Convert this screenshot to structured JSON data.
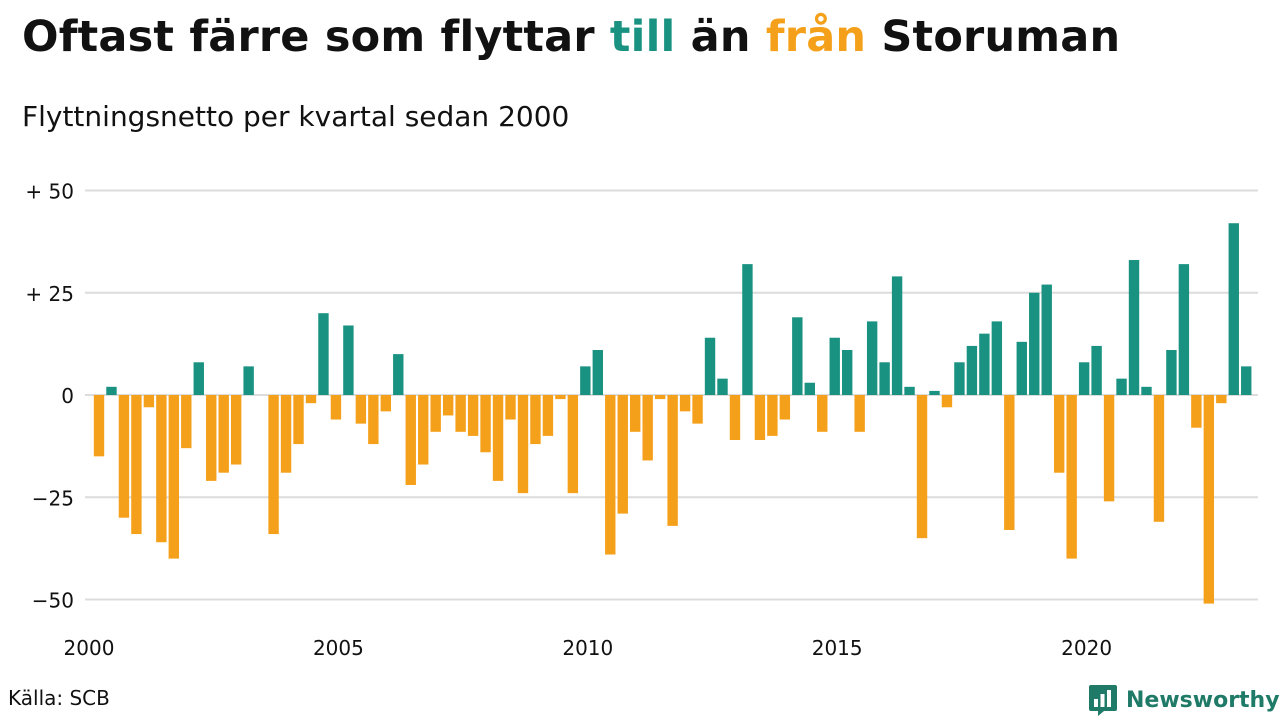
{
  "title": {
    "part1": "Oftast färre som flyttar ",
    "till": "till",
    "part2": " än ",
    "fran": "från",
    "part3": " Storuman"
  },
  "subtitle": "Flyttningsnetto per kvartal sedan 2000",
  "source": "Källa: SCB",
  "brand": {
    "name": "Newsworthy",
    "icon": "newsworthy-logo-icon"
  },
  "colors": {
    "positive": "#1a9281",
    "negative": "#f5a01a",
    "grid": "#dcdcdc",
    "brand": "#1f7a67"
  },
  "chart_data": {
    "type": "bar",
    "title": "Oftast färre som flyttar till än från Storuman",
    "subtitle": "Flyttningsnetto per kvartal sedan 2000",
    "x_start": "2000 Q1",
    "frequency": "quarterly",
    "x_ticks": [
      "2000",
      "2005",
      "2010",
      "2015",
      "2020"
    ],
    "y_ticks": [
      50,
      25,
      0,
      -25,
      -50
    ],
    "y_tick_labels": [
      "+ 50",
      "+ 25",
      "0",
      "−25",
      "−50"
    ],
    "ylim": [
      -55,
      55
    ],
    "grid": true,
    "values": [
      -15,
      2,
      -30,
      -34,
      -3,
      -36,
      -40,
      -13,
      8,
      -21,
      -19,
      -17,
      7,
      0,
      -34,
      -19,
      -12,
      -2,
      20,
      -6,
      17,
      -7,
      -12,
      -4,
      10,
      -22,
      -17,
      -9,
      -5,
      -9,
      -10,
      -14,
      -21,
      -6,
      -24,
      -12,
      -10,
      -1,
      -24,
      7,
      11,
      -39,
      -29,
      -9,
      -16,
      -1,
      -32,
      -4,
      -7,
      14,
      4,
      -11,
      32,
      -11,
      -10,
      -6,
      19,
      3,
      -9,
      14,
      11,
      -9,
      18,
      8,
      29,
      2,
      -35,
      1,
      -3,
      8,
      12,
      15,
      18,
      -33,
      13,
      25,
      27,
      -19,
      -40,
      8,
      12,
      -26,
      4,
      33,
      2,
      -31,
      11,
      32,
      -8,
      -51,
      -2,
      42,
      7
    ]
  }
}
